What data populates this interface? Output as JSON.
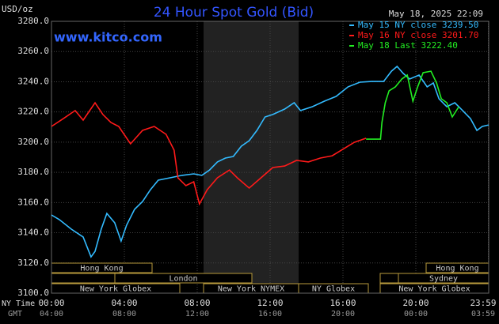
{
  "chart_data": {
    "type": "line",
    "title": "24 Hour Spot Gold (Bid)",
    "site": "www.kitco.com",
    "timestamp": "May 18, 2025 22:09",
    "y_label": "USD/oz",
    "x_label": "NY Time",
    "x2_label": "GMT",
    "xlim": [
      0,
      24
    ],
    "ylim": [
      3100,
      3280
    ],
    "yticks": [
      {
        "value": 3100,
        "label": "3100.0"
      },
      {
        "value": 3120,
        "label": "3120.0"
      },
      {
        "value": 3140,
        "label": "3140.0"
      },
      {
        "value": 3160,
        "label": "3160.0"
      },
      {
        "value": 3180,
        "label": "3180.0"
      },
      {
        "value": 3200,
        "label": "3200.0"
      },
      {
        "value": 3220,
        "label": "3220.0"
      },
      {
        "value": 3240,
        "label": "3240.0"
      },
      {
        "value": 3260,
        "label": "3260.0"
      },
      {
        "value": 3280,
        "label": "3280.0"
      }
    ],
    "xticks": [
      {
        "value": 0,
        "label": "00:00"
      },
      {
        "value": 4,
        "label": "04:00"
      },
      {
        "value": 8,
        "label": "08:00"
      },
      {
        "value": 12,
        "label": "12:00"
      },
      {
        "value": 16,
        "label": "16:00"
      },
      {
        "value": 20,
        "label": "20:00"
      },
      {
        "value": 23.98,
        "label": "23:59"
      }
    ],
    "x2ticks": [
      {
        "value": 0,
        "label": "04:00"
      },
      {
        "value": 4,
        "label": "08:00"
      },
      {
        "value": 8,
        "label": "12:00"
      },
      {
        "value": 12,
        "label": "16:00"
      },
      {
        "value": 16,
        "label": "20:00"
      },
      {
        "value": 20,
        "label": "00:00"
      },
      {
        "value": 23.98,
        "label": "03:59"
      }
    ],
    "grid": true,
    "sessions": [
      "Hong Kong",
      "London",
      "New York Globex",
      "New York NYMEX",
      "NY Globex",
      "Hong Kong",
      "Sydney",
      "New York Globex"
    ],
    "series": [
      {
        "name": "May 15 NY close 3239.50",
        "color": "#33bbff",
        "x": [
          0,
          0.43,
          1.09,
          1.74,
          2.17,
          2.39,
          2.73,
          3.04,
          3.47,
          3.82,
          4.12,
          4.56,
          5.0,
          5.43,
          5.86,
          6.51,
          7.16,
          7.81,
          8.25,
          8.68,
          9.11,
          9.55,
          9.98,
          10.42,
          10.85,
          11.28,
          11.72,
          12.15,
          12.8,
          13.32,
          13.67,
          14.32,
          14.97,
          15.62,
          16.28,
          16.93,
          17.58,
          18.23,
          18.66,
          18.97,
          19.31,
          19.66,
          20.18,
          20.62,
          20.96,
          21.27,
          21.7,
          22.14,
          22.57,
          23.0,
          23.35,
          23.65,
          24.0
        ],
        "values": [
          3151.8,
          3148.7,
          3142.4,
          3137.2,
          3124,
          3127.7,
          3142.4,
          3152.8,
          3146.6,
          3134.5,
          3145,
          3155.5,
          3160.7,
          3168.5,
          3174.8,
          3176.4,
          3178,
          3179,
          3178,
          3181.6,
          3186.9,
          3189.5,
          3190.5,
          3197.3,
          3201,
          3207.8,
          3216.7,
          3218.3,
          3221.9,
          3226.1,
          3220.9,
          3223.5,
          3227.1,
          3230.3,
          3236.6,
          3239.7,
          3240.2,
          3240.2,
          3247,
          3250.2,
          3245.5,
          3241.8,
          3244.4,
          3236.6,
          3239.2,
          3228.7,
          3223.5,
          3226.1,
          3220.9,
          3215.6,
          3207.8,
          3210.4,
          3211.4
        ]
      },
      {
        "name": "May 16 NY close 3201.70",
        "color": "#ff1a1a",
        "x": [
          0,
          0.65,
          1.3,
          1.74,
          2.39,
          2.82,
          3.26,
          3.69,
          4.34,
          5.0,
          5.64,
          6.29,
          6.73,
          6.94,
          7.38,
          7.81,
          8.12,
          8.55,
          9.11,
          9.77,
          10.2,
          10.85,
          11.5,
          12.15,
          12.8,
          13.45,
          14.1,
          14.76,
          15.41,
          16.06,
          16.62,
          17.27
        ],
        "values": [
          3210.4,
          3215.6,
          3220.9,
          3214.6,
          3226.1,
          3218.3,
          3213,
          3210.4,
          3198.9,
          3207.8,
          3210.4,
          3205.2,
          3194.7,
          3176.4,
          3171.2,
          3173.8,
          3159.1,
          3168.5,
          3176.4,
          3181.6,
          3176.4,
          3169.6,
          3176.4,
          3183.2,
          3184.2,
          3187.9,
          3186.9,
          3189.5,
          3191,
          3195.8,
          3199.9,
          3202.6
        ]
      },
      {
        "name": "May 18 Last 3222.40",
        "color": "#22ee22",
        "x": [
          17.27,
          18.06,
          18.14,
          18.32,
          18.53,
          18.88,
          19.23,
          19.53,
          19.84,
          20.1,
          20.4,
          20.83,
          21.14,
          21.4,
          21.7,
          22.0,
          22.36
        ],
        "values": [
          3202,
          3202,
          3213,
          3226.1,
          3234,
          3236.6,
          3241.8,
          3244.4,
          3227.1,
          3236.6,
          3246,
          3247,
          3239.2,
          3228.7,
          3226.1,
          3216.7,
          3223.5
        ]
      }
    ]
  }
}
